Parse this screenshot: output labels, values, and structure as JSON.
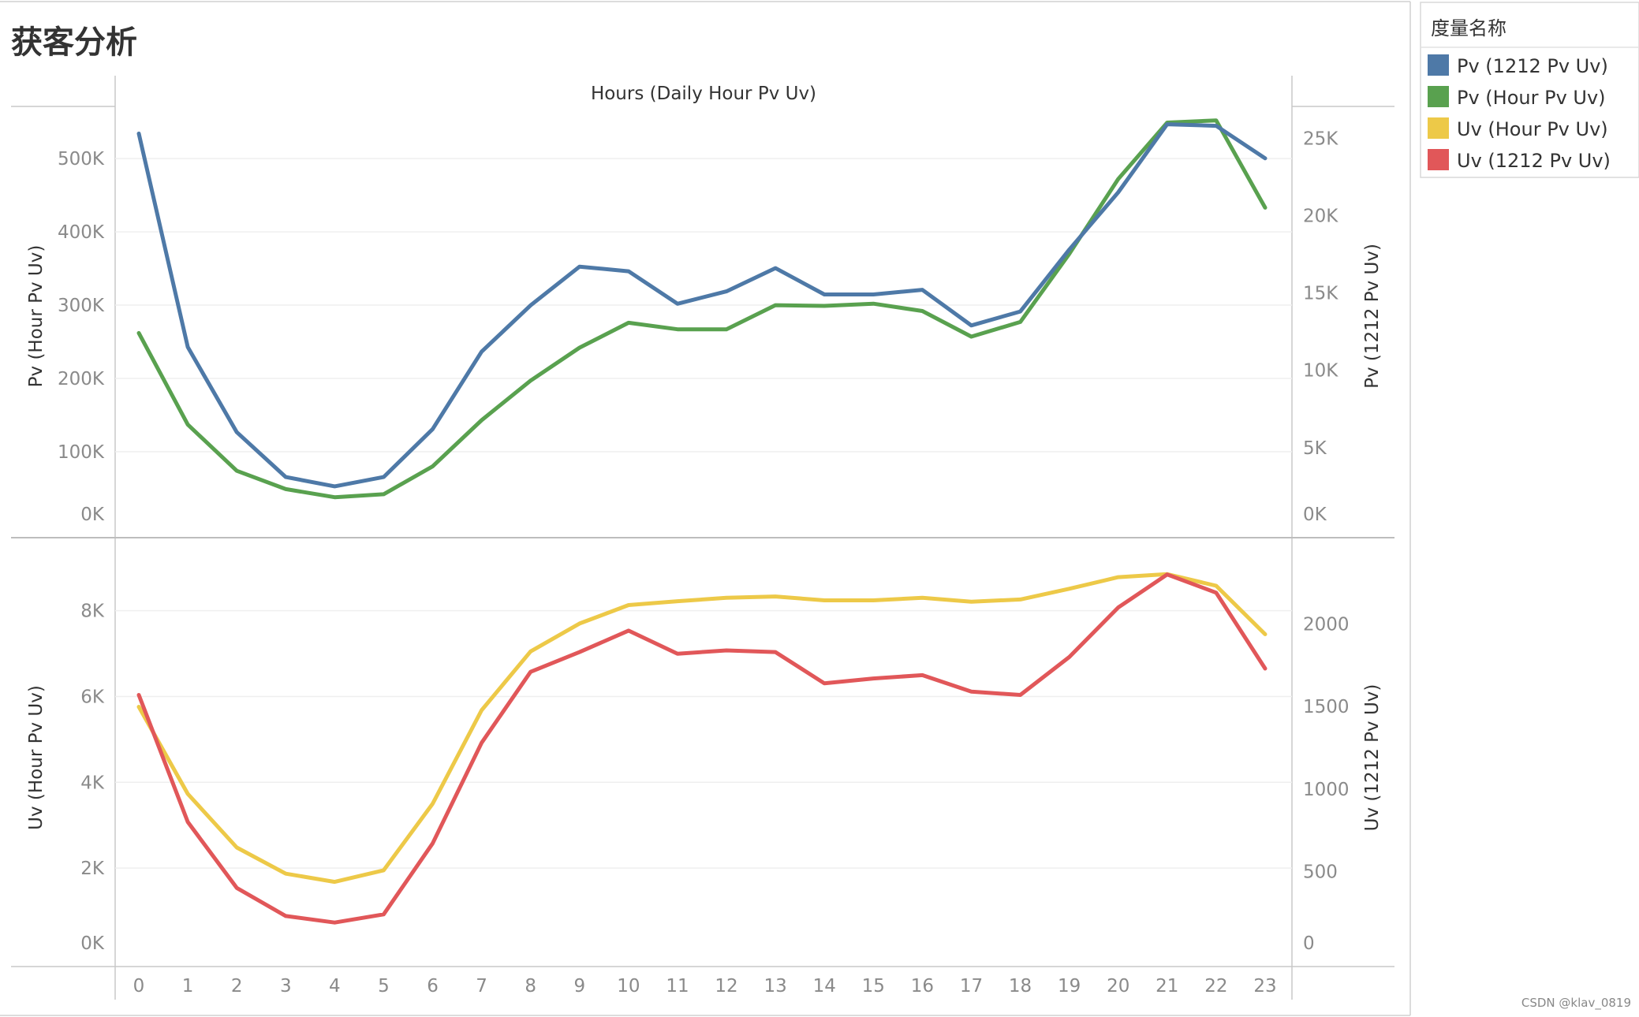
{
  "title": "获客分析",
  "header": "Hours (Daily Hour Pv Uv)",
  "watermark": "CSDN @klav_0819",
  "legend": {
    "title": "度量名称",
    "items": [
      {
        "label": "Pv (1212 Pv Uv)",
        "color": "#4e79a7"
      },
      {
        "label": "Pv (Hour Pv Uv)",
        "color": "#59a14f"
      },
      {
        "label": "Uv (Hour Pv Uv)",
        "color": "#edc948"
      },
      {
        "label": "Uv (1212 Pv Uv)",
        "color": "#e15759"
      }
    ]
  },
  "chart_data": [
    {
      "type": "line",
      "xlabel": "",
      "x": [
        "0",
        "1",
        "2",
        "3",
        "4",
        "5",
        "6",
        "7",
        "8",
        "9",
        "10",
        "11",
        "12",
        "13",
        "14",
        "15",
        "16",
        "17",
        "18",
        "19",
        "20",
        "21",
        "22",
        "23"
      ],
      "ylabel_left": "Pv (Hour Pv Uv)",
      "ylabel_right": "Pv (1212 Pv Uv)",
      "ylim_left": [
        0,
        570000
      ],
      "ylim_right": [
        0,
        27000
      ],
      "yticks_left": [
        "0K",
        "100K",
        "200K",
        "300K",
        "400K",
        "500K"
      ],
      "yticks_right": [
        "0K",
        "5K",
        "10K",
        "15K",
        "20K",
        "25K"
      ],
      "series": [
        {
          "name": "Pv (Hour Pv Uv)",
          "axis": "left",
          "color": "#59a14f",
          "values": [
            262000,
            137000,
            74000,
            49000,
            38000,
            42000,
            80000,
            143000,
            197000,
            242000,
            276000,
            267000,
            267000,
            300000,
            299000,
            302000,
            292000,
            257000,
            277000,
            370000,
            472000,
            549000,
            552000,
            433000
          ]
        },
        {
          "name": "Pv (1212 Pv Uv)",
          "axis": "right",
          "color": "#4e79a7",
          "values": [
            25300,
            11500,
            6000,
            3100,
            2500,
            3100,
            6200,
            11200,
            14200,
            16700,
            16400,
            14300,
            15100,
            16600,
            14900,
            14900,
            15200,
            12900,
            13800,
            17800,
            21500,
            25900,
            25800,
            23700
          ]
        }
      ]
    },
    {
      "type": "line",
      "xlabel": "",
      "x": [
        "0",
        "1",
        "2",
        "3",
        "4",
        "5",
        "6",
        "7",
        "8",
        "9",
        "10",
        "11",
        "12",
        "13",
        "14",
        "15",
        "16",
        "17",
        "18",
        "19",
        "20",
        "21",
        "22",
        "23"
      ],
      "ylabel_left": "Uv (Hour Pv Uv)",
      "ylabel_right": "Uv (1212 Pv Uv)",
      "ylim_left": [
        0,
        9150
      ],
      "ylim_right": [
        0,
        2380
      ],
      "yticks_left": [
        "0K",
        "2K",
        "4K",
        "6K",
        "8K"
      ],
      "yticks_right": [
        "0",
        "500",
        "1000",
        "1500",
        "2000"
      ],
      "series": [
        {
          "name": "Uv (Hour Pv Uv)",
          "axis": "left",
          "color": "#edc948",
          "values": [
            5760,
            3730,
            2480,
            1870,
            1680,
            1950,
            3500,
            5680,
            7050,
            7700,
            8130,
            8220,
            8300,
            8330,
            8240,
            8240,
            8300,
            8210,
            8260,
            8510,
            8780,
            8850,
            8580,
            7450
          ]
        },
        {
          "name": "Uv (1212 Pv Uv)",
          "axis": "right",
          "color": "#e15759",
          "values": [
            1570,
            800,
            400,
            230,
            190,
            240,
            670,
            1280,
            1710,
            1830,
            1960,
            1820,
            1840,
            1830,
            1640,
            1670,
            1690,
            1590,
            1570,
            1800,
            2100,
            2300,
            2190,
            1730
          ]
        }
      ]
    }
  ]
}
